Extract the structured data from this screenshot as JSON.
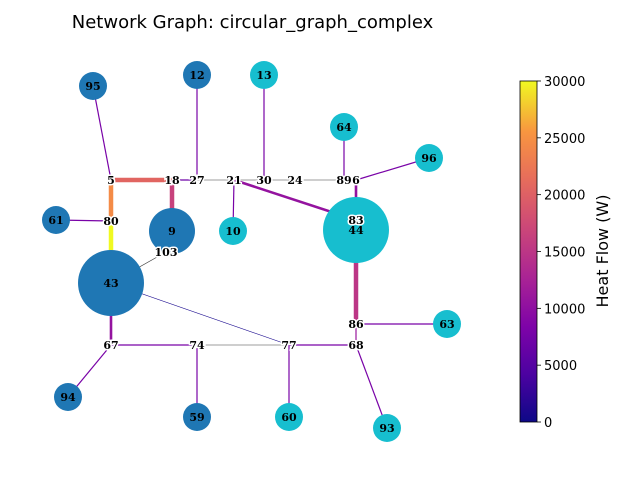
{
  "title": "Network Graph: circular_graph_complex",
  "colorbar": {
    "label": "Heat Flow (W)",
    "min": 0,
    "max": 30000,
    "ticks": [
      "0",
      "5000",
      "10000",
      "15000",
      "20000",
      "25000",
      "30000"
    ],
    "colormap": "plasma"
  },
  "node_colors": {
    "dark": "#1f77b4",
    "light": "#17becf"
  },
  "nodes": [
    {
      "id": "95",
      "kind": "circle",
      "color": "dark",
      "size": "small"
    },
    {
      "id": "12",
      "kind": "circle",
      "color": "dark",
      "size": "small"
    },
    {
      "id": "13",
      "kind": "circle",
      "color": "light",
      "size": "small"
    },
    {
      "id": "64",
      "kind": "circle",
      "color": "light",
      "size": "small"
    },
    {
      "id": "96",
      "kind": "circle",
      "color": "light",
      "size": "small"
    },
    {
      "id": "61",
      "kind": "circle",
      "color": "dark",
      "size": "small"
    },
    {
      "id": "9",
      "kind": "circle",
      "color": "dark",
      "size": "large"
    },
    {
      "id": "10",
      "kind": "circle",
      "color": "light",
      "size": "small"
    },
    {
      "id": "44",
      "kind": "circle",
      "color": "light",
      "size": "xlarge"
    },
    {
      "id": "43",
      "kind": "circle",
      "color": "dark",
      "size": "xlarge"
    },
    {
      "id": "63",
      "kind": "circle",
      "color": "light",
      "size": "small"
    },
    {
      "id": "94",
      "kind": "circle",
      "color": "dark",
      "size": "small"
    },
    {
      "id": "59",
      "kind": "circle",
      "color": "dark",
      "size": "small"
    },
    {
      "id": "60",
      "kind": "circle",
      "color": "light",
      "size": "small"
    },
    {
      "id": "93",
      "kind": "circle",
      "color": "light",
      "size": "small"
    },
    {
      "id": "5",
      "kind": "junction"
    },
    {
      "id": "18",
      "kind": "junction"
    },
    {
      "id": "27",
      "kind": "junction"
    },
    {
      "id": "21",
      "kind": "junction"
    },
    {
      "id": "30",
      "kind": "junction"
    },
    {
      "id": "24",
      "kind": "junction"
    },
    {
      "id": "89",
      "kind": "junction"
    },
    {
      "id": "6",
      "kind": "junction"
    },
    {
      "id": "80",
      "kind": "junction"
    },
    {
      "id": "83",
      "kind": "junction"
    },
    {
      "id": "103",
      "kind": "junction"
    },
    {
      "id": "86",
      "kind": "junction"
    },
    {
      "id": "67",
      "kind": "junction"
    },
    {
      "id": "74",
      "kind": "junction"
    },
    {
      "id": "77",
      "kind": "junction"
    },
    {
      "id": "68",
      "kind": "junction"
    }
  ],
  "edges": [
    {
      "source": "95",
      "target": "5",
      "flow": 8000,
      "weight": "thin"
    },
    {
      "source": "12",
      "target": "27",
      "flow": 8000,
      "weight": "thin"
    },
    {
      "source": "13",
      "target": "30",
      "flow": 8000,
      "weight": "thin"
    },
    {
      "source": "64",
      "target": "89",
      "flow": 8000,
      "weight": "thin"
    },
    {
      "source": "96",
      "target": "6",
      "flow": 8000,
      "weight": "thin"
    },
    {
      "source": "5",
      "target": "18",
      "flow": 20500,
      "weight": "thick"
    },
    {
      "source": "18",
      "target": "27",
      "flow": 7000,
      "weight": "thin"
    },
    {
      "source": "27",
      "target": "21",
      "flow": 0,
      "weight": "hair"
    },
    {
      "source": "21",
      "target": "30",
      "flow": 0,
      "weight": "hair"
    },
    {
      "source": "30",
      "target": "24",
      "flow": 0,
      "weight": "hair"
    },
    {
      "source": "24",
      "target": "89",
      "flow": 0,
      "weight": "hair"
    },
    {
      "source": "89",
      "target": "6",
      "flow": 0,
      "weight": "hair"
    },
    {
      "source": "21",
      "target": "10",
      "flow": 8000,
      "weight": "thin"
    },
    {
      "source": "21",
      "target": "83",
      "flow": 10500,
      "weight": "medium"
    },
    {
      "source": "6",
      "target": "83",
      "flow": 10500,
      "weight": "medium"
    },
    {
      "source": "5",
      "target": "80",
      "flow": 24500,
      "weight": "thick"
    },
    {
      "source": "61",
      "target": "80",
      "flow": 8000,
      "weight": "thin"
    },
    {
      "source": "18",
      "target": "9",
      "flow": 16500,
      "weight": "thick"
    },
    {
      "source": "80",
      "target": "43",
      "flow": 30000,
      "weight": "thick"
    },
    {
      "source": "103",
      "target": "43",
      "flow": 0,
      "weight": "hair"
    },
    {
      "source": "9",
      "target": "103",
      "flow": 0,
      "weight": "hair"
    },
    {
      "source": "43",
      "target": "77",
      "flow": 3000,
      "weight": "hair"
    },
    {
      "source": "43",
      "target": "67",
      "flow": 10500,
      "weight": "medium"
    },
    {
      "source": "83",
      "target": "86",
      "flow": 15000,
      "weight": "thick"
    },
    {
      "source": "86",
      "target": "63",
      "flow": 8000,
      "weight": "thin"
    },
    {
      "source": "86",
      "target": "68",
      "flow": 11000,
      "weight": "thin"
    },
    {
      "source": "67",
      "target": "94",
      "flow": 8000,
      "weight": "thin"
    },
    {
      "source": "67",
      "target": "74",
      "flow": 8000,
      "weight": "thin"
    },
    {
      "source": "74",
      "target": "59",
      "flow": 8000,
      "weight": "thin"
    },
    {
      "source": "74",
      "target": "77",
      "flow": 0,
      "weight": "hair"
    },
    {
      "source": "77",
      "target": "68",
      "flow": 8000,
      "weight": "thin"
    },
    {
      "source": "77",
      "target": "60",
      "flow": 8000,
      "weight": "thin"
    },
    {
      "source": "68",
      "target": "93",
      "flow": 8000,
      "weight": "thin"
    }
  ]
}
